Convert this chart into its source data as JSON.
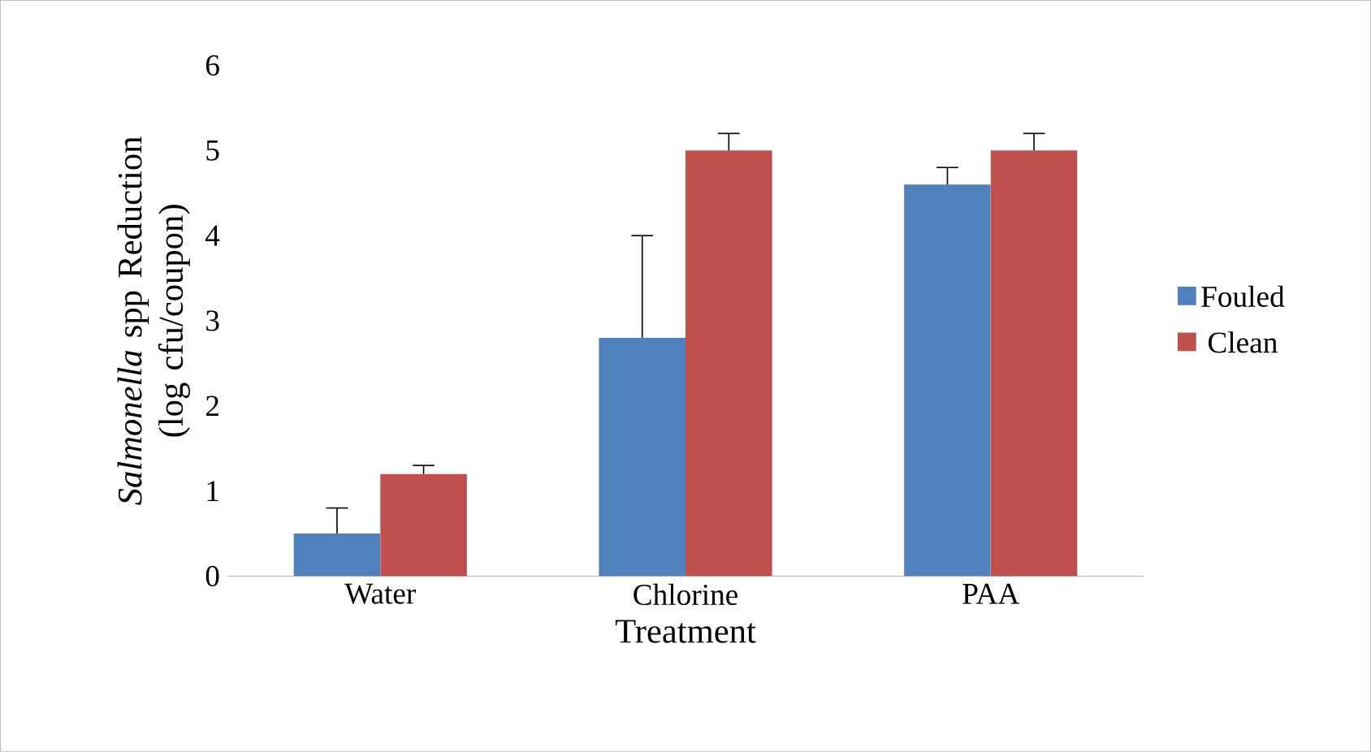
{
  "chart_data": {
    "type": "bar",
    "xlabel": "Treatment",
    "ylabel": "*Salmonella* spp Reduction (log cfu/coupon)",
    "categories": [
      "Water",
      "Chlorine",
      "PAA"
    ],
    "series": [
      {
        "name": "Fouled",
        "color": "#4f81bd",
        "values": [
          0.5,
          2.8,
          4.6
        ],
        "errors": [
          [
            0.5,
            0.8
          ],
          [
            2.8,
            4.0
          ],
          [
            4.6,
            4.8
          ]
        ]
      },
      {
        "name": "Clean",
        "color": "#c0504d",
        "values": [
          1.2,
          5.0,
          5.0
        ],
        "errors": [
          [
            1.2,
            1.3
          ],
          [
            5.0,
            5.2
          ],
          [
            5.0,
            5.2
          ]
        ]
      }
    ],
    "ylim": [
      0,
      6
    ],
    "yticks": [
      0,
      1,
      2,
      3,
      4,
      5,
      6
    ],
    "grid": false,
    "legend": "right"
  }
}
